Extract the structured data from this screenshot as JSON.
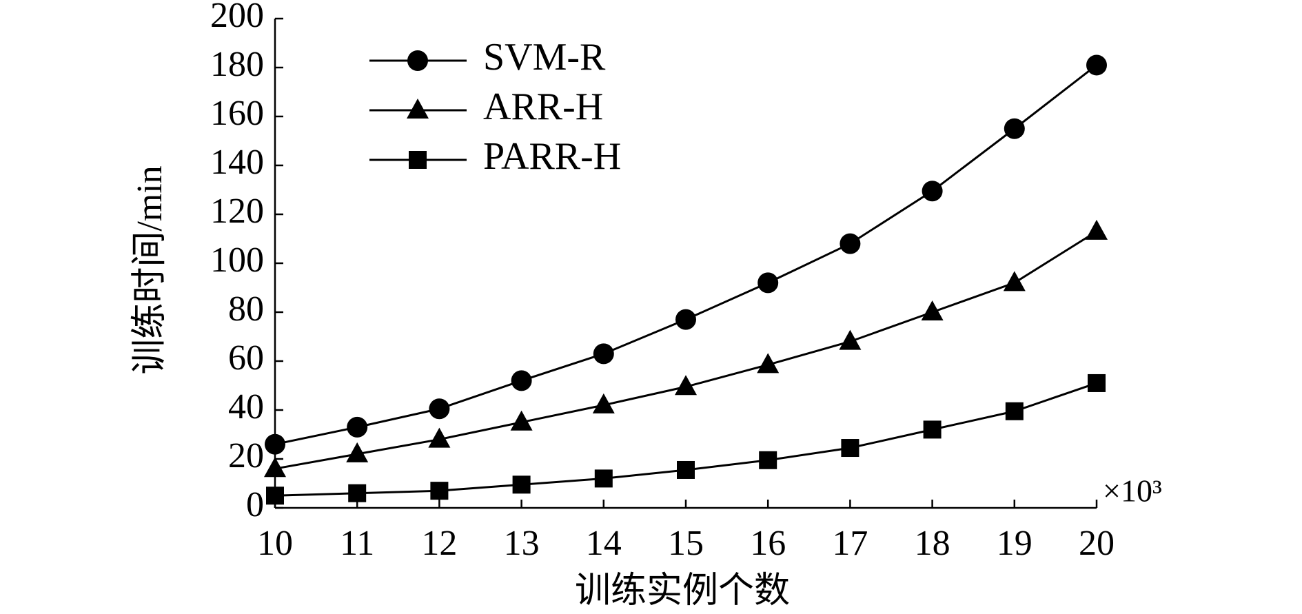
{
  "chart_data": {
    "type": "line",
    "x_label": "训练实例个数",
    "y_label": "训练时间/min",
    "x_multiplier": "×10³",
    "x": [
      10,
      11,
      12,
      13,
      14,
      15,
      16,
      17,
      18,
      19,
      20
    ],
    "series": [
      {
        "name": "SVM-R",
        "color": "#000000",
        "marker": "circle",
        "values": [
          26,
          33,
          40.5,
          52,
          63,
          77,
          92,
          108,
          129.5,
          155,
          181
        ]
      },
      {
        "name": "ARR-H",
        "color": "#000000",
        "marker": "triangle",
        "values": [
          16,
          22,
          28,
          35,
          42,
          49.5,
          58.5,
          68,
          80,
          92,
          113
        ]
      },
      {
        "name": "PARR-H",
        "color": "#000000",
        "marker": "square",
        "values": [
          5,
          6,
          7,
          9.5,
          12,
          15.5,
          19.5,
          24.5,
          32,
          39.5,
          51
        ]
      }
    ],
    "xlim": [
      10,
      20
    ],
    "xticks": [
      10,
      11,
      12,
      13,
      14,
      15,
      16,
      17,
      18,
      19,
      20
    ],
    "ylim": [
      0,
      200
    ],
    "yticks": [
      0,
      20,
      40,
      60,
      80,
      100,
      120,
      140,
      160,
      180,
      200
    ],
    "grid": false,
    "legend": "upper left"
  }
}
